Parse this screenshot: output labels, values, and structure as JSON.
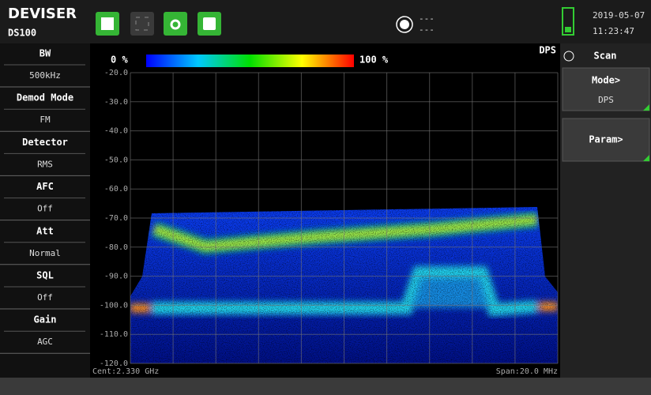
{
  "header": {
    "brand": "DEVISER",
    "model": "DS100",
    "gps": [
      "---",
      "---"
    ],
    "date": "2019-05-07",
    "time": "11:23:47"
  },
  "left_panel": [
    {
      "label": "BW",
      "value": "500kHz"
    },
    {
      "label": "Demod Mode",
      "value": "FM"
    },
    {
      "label": "Detector",
      "value": "RMS"
    },
    {
      "label": "AFC",
      "value": "Off"
    },
    {
      "label": "Att",
      "value": "Normal"
    },
    {
      "label": "SQL",
      "value": "Off"
    },
    {
      "label": "Gain",
      "value": "AGC"
    }
  ],
  "plot": {
    "scale_min": "0 %",
    "scale_max": "100 %",
    "mode": "DPS",
    "y_labels": [
      "-20.0",
      "-30.0",
      "-40.0",
      "-50.0",
      "-60.0",
      "-70.0",
      "-80.0",
      "-90.0",
      "-100.0",
      "-110.0",
      "-120.0"
    ],
    "center": "Cent:2.330 GHz",
    "span": "Span:20.0 MHz"
  },
  "right_panel": {
    "title": "Scan",
    "buttons": [
      {
        "label": "Mode>",
        "value": "DPS"
      },
      {
        "label": "Param>"
      }
    ]
  }
}
